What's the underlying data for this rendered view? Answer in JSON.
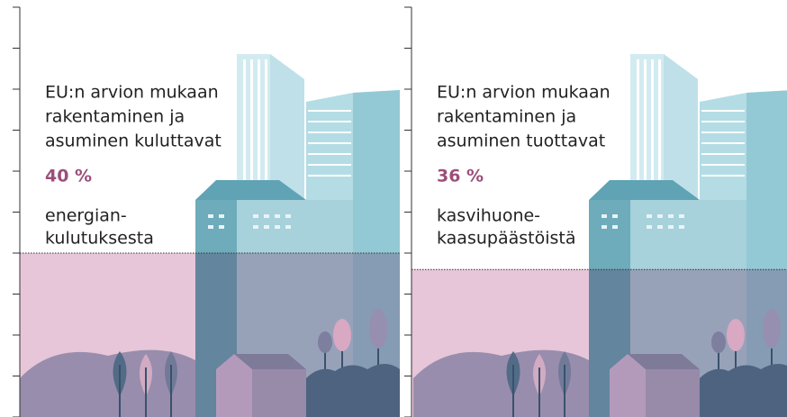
{
  "chart_data": [
    {
      "type": "fill",
      "text_lines": [
        "EU:n arvion mukaan",
        "rakentaminen ja",
        "asuminen kuluttavat"
      ],
      "values": [
        40
      ],
      "value_labels": [
        "40 %"
      ],
      "caption_lines": [
        "energian-",
        "kulutuksesta"
      ],
      "color": "#9b4f7a",
      "fill_color": "#e6c6d8",
      "ylim": [
        0,
        100
      ],
      "yticks": [
        0,
        10,
        20,
        30,
        40,
        50,
        60,
        70,
        80,
        90,
        100
      ]
    },
    {
      "type": "fill",
      "text_lines": [
        "EU:n arvion mukaan",
        "rakentaminen ja",
        "asuminen tuottavat"
      ],
      "values": [
        36
      ],
      "value_labels": [
        "36 %"
      ],
      "caption_lines": [
        "kasvihuone-",
        "kaasupäästöistä"
      ],
      "color": "#9b4f7a",
      "fill_color": "#e6c6d8",
      "ylim": [
        0,
        100
      ],
      "yticks": [
        0,
        10,
        20,
        30,
        40,
        50,
        60,
        70,
        80,
        90,
        100
      ]
    }
  ]
}
